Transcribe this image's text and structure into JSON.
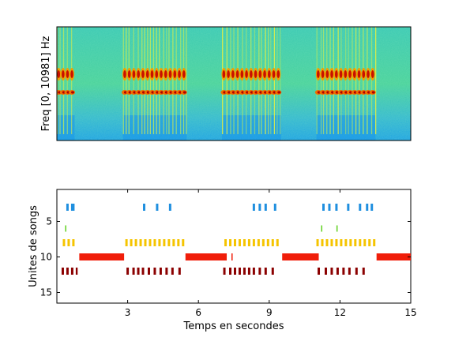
{
  "chart_data": [
    {
      "type": "heatmap",
      "title": "",
      "xlabel": "",
      "ylabel": "Freq [0, 10981] Hz",
      "xlim": [
        0,
        15
      ],
      "ylim": [
        0,
        10981
      ],
      "xticks": [],
      "yticks": [],
      "song_bouts_s": [
        [
          0.0,
          0.75
        ],
        [
          2.8,
          5.5
        ],
        [
          7.0,
          9.5
        ],
        [
          11.0,
          13.5
        ]
      ],
      "colormap": "jet"
    },
    {
      "type": "scatter",
      "title": "",
      "xlabel": "Temps en secondes",
      "ylabel": "Unites de songs",
      "xlim": [
        0,
        15
      ],
      "ylim": [
        16.5,
        0.5
      ],
      "xticks": [
        3,
        6,
        9,
        12,
        15
      ],
      "yticks": [
        5,
        10,
        15
      ],
      "series": [
        {
          "unit": 3,
          "color": "#1f8fdf",
          "intervals": [
            [
              0.4,
              0.5
            ],
            [
              0.6,
              0.75
            ],
            [
              3.65,
              3.75
            ],
            [
              4.2,
              4.3
            ],
            [
              4.75,
              4.85
            ],
            [
              8.3,
              8.4
            ],
            [
              8.55,
              8.65
            ],
            [
              8.8,
              8.9
            ],
            [
              9.2,
              9.3
            ],
            [
              11.25,
              11.35
            ],
            [
              11.5,
              11.6
            ],
            [
              11.8,
              11.9
            ],
            [
              12.3,
              12.4
            ],
            [
              12.8,
              12.9
            ],
            [
              13.1,
              13.2
            ],
            [
              13.3,
              13.4
            ]
          ]
        },
        {
          "unit": 6,
          "color": "#5fd01f",
          "intervals": [
            [
              0.35,
              0.38
            ],
            [
              11.2,
              11.25
            ],
            [
              11.85,
              11.9
            ]
          ]
        },
        {
          "unit": 8,
          "color": "#f5c400",
          "intervals": [
            [
              0.25,
              0.35
            ],
            [
              0.45,
              0.55
            ],
            [
              0.65,
              0.75
            ],
            [
              2.9,
              3.0
            ],
            [
              3.1,
              3.2
            ],
            [
              3.3,
              3.4
            ],
            [
              3.5,
              3.6
            ],
            [
              3.7,
              3.8
            ],
            [
              3.9,
              4.0
            ],
            [
              4.1,
              4.2
            ],
            [
              4.3,
              4.4
            ],
            [
              4.5,
              4.6
            ],
            [
              4.7,
              4.8
            ],
            [
              4.9,
              5.0
            ],
            [
              5.1,
              5.2
            ],
            [
              5.3,
              5.4
            ],
            [
              7.1,
              7.2
            ],
            [
              7.3,
              7.4
            ],
            [
              7.5,
              7.6
            ],
            [
              7.7,
              7.8
            ],
            [
              7.9,
              8.0
            ],
            [
              8.1,
              8.2
            ],
            [
              8.3,
              8.4
            ],
            [
              8.5,
              8.6
            ],
            [
              8.7,
              8.8
            ],
            [
              8.9,
              9.0
            ],
            [
              9.1,
              9.2
            ],
            [
              9.3,
              9.4
            ],
            [
              11.0,
              11.1
            ],
            [
              11.2,
              11.3
            ],
            [
              11.4,
              11.5
            ],
            [
              11.6,
              11.7
            ],
            [
              11.8,
              11.9
            ],
            [
              12.0,
              12.1
            ],
            [
              12.2,
              12.3
            ],
            [
              12.4,
              12.5
            ],
            [
              12.6,
              12.7
            ],
            [
              12.8,
              12.9
            ],
            [
              13.0,
              13.1
            ],
            [
              13.2,
              13.3
            ],
            [
              13.4,
              13.5
            ]
          ]
        },
        {
          "unit": 10,
          "color": "#f01e0a",
          "intervals": [
            [
              0.95,
              2.85
            ],
            [
              5.45,
              7.2
            ],
            [
              7.4,
              7.45
            ],
            [
              9.55,
              11.1
            ],
            [
              13.55,
              15.0
            ]
          ]
        },
        {
          "unit": 12,
          "color": "#8b0000",
          "intervals": [
            [
              0.2,
              0.3
            ],
            [
              0.4,
              0.5
            ],
            [
              0.6,
              0.7
            ],
            [
              0.8,
              0.88
            ],
            [
              2.95,
              3.05
            ],
            [
              3.2,
              3.3
            ],
            [
              3.4,
              3.5
            ],
            [
              3.6,
              3.7
            ],
            [
              3.85,
              3.95
            ],
            [
              4.1,
              4.2
            ],
            [
              4.35,
              4.45
            ],
            [
              4.6,
              4.7
            ],
            [
              4.85,
              4.95
            ],
            [
              5.15,
              5.25
            ],
            [
              7.05,
              7.15
            ],
            [
              7.3,
              7.4
            ],
            [
              7.5,
              7.6
            ],
            [
              7.7,
              7.8
            ],
            [
              7.9,
              8.0
            ],
            [
              8.1,
              8.2
            ],
            [
              8.3,
              8.4
            ],
            [
              8.55,
              8.65
            ],
            [
              8.8,
              8.9
            ],
            [
              9.1,
              9.2
            ],
            [
              11.05,
              11.15
            ],
            [
              11.35,
              11.45
            ],
            [
              11.6,
              11.7
            ],
            [
              11.85,
              11.95
            ],
            [
              12.1,
              12.2
            ],
            [
              12.35,
              12.45
            ],
            [
              12.65,
              12.75
            ],
            [
              12.95,
              13.05
            ]
          ]
        }
      ]
    }
  ]
}
